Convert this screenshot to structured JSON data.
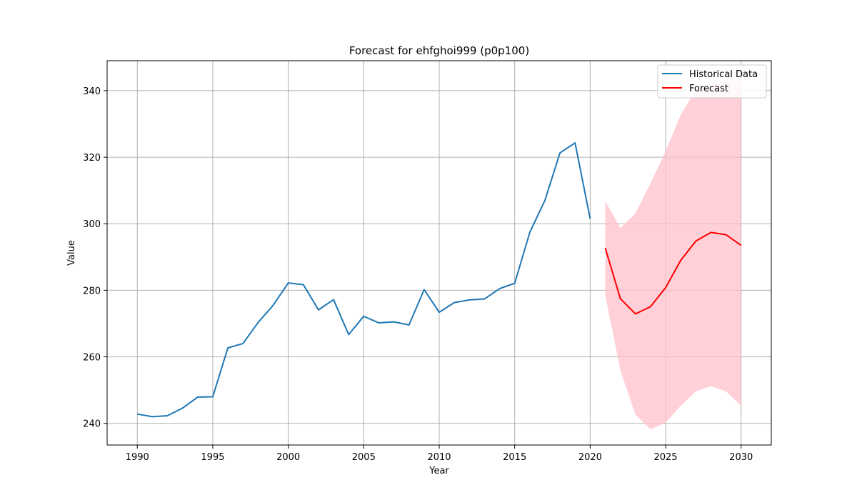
{
  "chart_data": {
    "type": "line",
    "title": "Forecast for ehfghoi999 (p0p100)",
    "xlabel": "Year",
    "ylabel": "Value",
    "xlim": [
      1988,
      2032
    ],
    "ylim": [
      233.5,
      349.0
    ],
    "xticks": [
      1990,
      1995,
      2000,
      2005,
      2010,
      2015,
      2020,
      2025,
      2030
    ],
    "yticks": [
      240,
      260,
      280,
      300,
      320,
      340
    ],
    "grid": true,
    "legend_position": "top-right",
    "series": [
      {
        "name": "Historical Data",
        "color": "#1f77b4",
        "x": [
          1990,
          1991,
          1992,
          1993,
          1994,
          1995,
          1996,
          1997,
          1998,
          1999,
          2000,
          2001,
          2002,
          2003,
          2004,
          2005,
          2006,
          2007,
          2008,
          2009,
          2010,
          2011,
          2012,
          2013,
          2014,
          2015,
          2016,
          2017,
          2018,
          2019,
          2020
        ],
        "values": [
          242.8,
          242.0,
          242.3,
          244.6,
          247.9,
          248.0,
          262.7,
          264.0,
          270.3,
          275.5,
          282.2,
          281.7,
          274.1,
          277.2,
          266.7,
          272.2,
          270.2,
          270.5,
          269.6,
          280.2,
          273.4,
          276.3,
          277.1,
          277.4,
          280.5,
          282.1,
          297.4,
          307.0,
          321.3,
          324.3,
          301.5
        ]
      },
      {
        "name": "Forecast",
        "color": "#ff0000",
        "x": [
          2021,
          2022,
          2023,
          2024,
          2025,
          2026,
          2027,
          2028,
          2029,
          2030
        ],
        "values": [
          292.7,
          277.5,
          272.9,
          275.1,
          280.8,
          289.0,
          294.8,
          297.4,
          296.7,
          293.5
        ]
      }
    ],
    "confidence_band": {
      "color": "#ffc0cb",
      "x": [
        2021,
        2022,
        2023,
        2024,
        2025,
        2026,
        2027,
        2028,
        2029,
        2030
      ],
      "lower": [
        278.5,
        256.0,
        242.6,
        238.2,
        240.2,
        245.3,
        249.6,
        251.2,
        249.6,
        245.3
      ],
      "upper": [
        306.8,
        298.7,
        303.1,
        312.2,
        321.8,
        332.8,
        340.2,
        342.0,
        342.6,
        343.0
      ]
    }
  }
}
